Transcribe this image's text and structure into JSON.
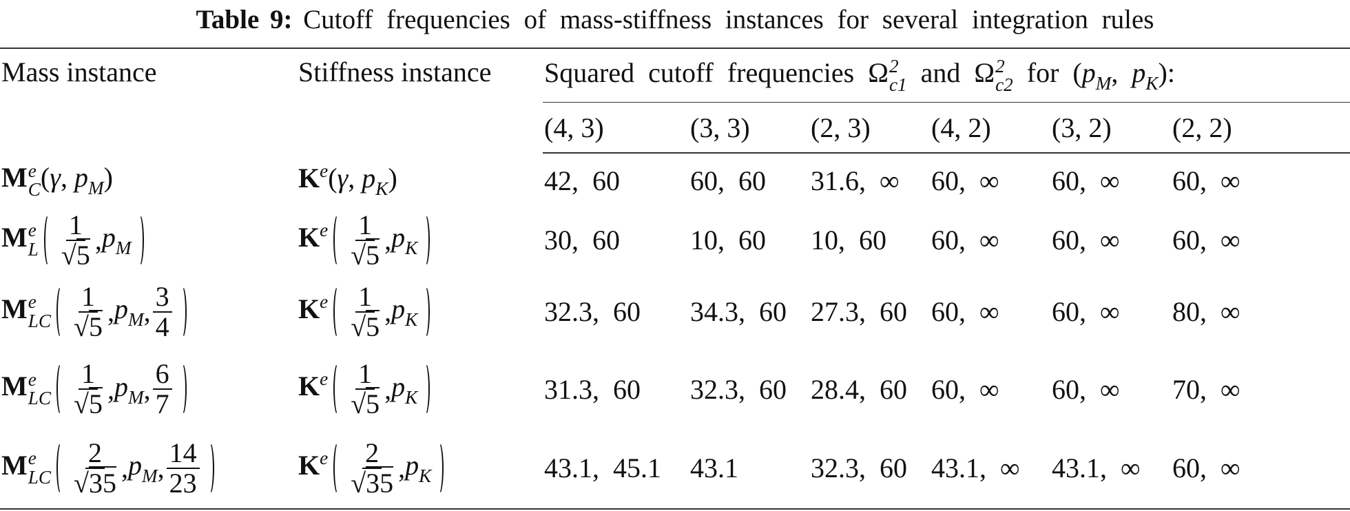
{
  "caption": {
    "label": "Table 9:",
    "text": "Cutoff frequencies of mass-stiffness instances for several integration rules"
  },
  "header": {
    "mass": "Mass instance",
    "stiffness": "Stiffness instance",
    "frequencies": [
      "Squared cutoff frequencies ",
      {
        "t": "Ω",
        "sup": "2",
        "sub": "c1"
      },
      " and ",
      {
        "t": "Ω",
        "sup": "2",
        "sub": "c2"
      },
      " for (",
      {
        "t": "p",
        "italic": true,
        "sub": "M"
      },
      ", ",
      {
        "t": "p",
        "italic": true,
        "sub": "K"
      },
      "):"
    ],
    "rules": [
      "(4, 3)",
      "(3, 3)",
      "(2, 3)",
      "(4, 2)",
      "(3, 2)",
      "(2, 2)"
    ]
  },
  "rows": [
    {
      "mass": [
        {
          "t": "M",
          "bold": true,
          "sup": "e",
          "sub": "C"
        },
        "(",
        {
          "t": "γ",
          "italic": true
        },
        ", ",
        {
          "t": "p",
          "italic": true,
          "sub": "M"
        },
        ")"
      ],
      "stiffness": [
        {
          "t": "K",
          "bold": true,
          "sup": "e"
        },
        "(",
        {
          "t": "γ",
          "italic": true
        },
        ", ",
        {
          "t": "p",
          "italic": true,
          "sub": "K"
        },
        ")"
      ],
      "frequencies": [
        "42, 60",
        "60, 60",
        "31.6, ∞",
        "60, ∞",
        "60, ∞",
        "60, ∞"
      ]
    },
    {
      "mass": [
        {
          "t": "M",
          "bold": true,
          "sup": "e",
          "sub": "L"
        },
        {
          "paren": [
            {
              "num": "1",
              "den": {
                "root": "√",
                "rad": "5"
              }
            },
            ",",
            {
              "t": "p",
              "italic": true,
              "sub": "M"
            }
          ]
        }
      ],
      "stiffness": [
        {
          "t": "K",
          "bold": true,
          "sup": "e"
        },
        {
          "paren": [
            {
              "num": "1",
              "den": {
                "root": "√",
                "rad": "5"
              }
            },
            ",",
            {
              "t": "p",
              "italic": true,
              "sub": "K"
            }
          ]
        }
      ],
      "frequencies": [
        "30, 60",
        "10, 60",
        "10, 60",
        "60, ∞",
        "60, ∞",
        "60, ∞"
      ]
    },
    {
      "mass": [
        {
          "t": "M",
          "bold": true,
          "sup": "e",
          "sub": "LC"
        },
        {
          "paren": [
            {
              "num": "1",
              "den": {
                "root": "√",
                "rad": "5"
              }
            },
            ",",
            {
              "t": "p",
              "italic": true,
              "sub": "M"
            },
            ",",
            {
              "num": "3",
              "den": "4"
            }
          ]
        }
      ],
      "stiffness": [
        {
          "t": "K",
          "bold": true,
          "sup": "e"
        },
        {
          "paren": [
            {
              "num": "1",
              "den": {
                "root": "√",
                "rad": "5"
              }
            },
            ",",
            {
              "t": "p",
              "italic": true,
              "sub": "K"
            }
          ]
        }
      ],
      "frequencies": [
        "32.3, 60",
        "34.3, 60",
        "27.3, 60",
        "60, ∞",
        "60, ∞",
        "80, ∞"
      ]
    },
    {
      "mass": [
        {
          "t": "M",
          "bold": true,
          "sup": "e",
          "sub": "LC"
        },
        {
          "paren": [
            {
              "num": "1",
              "den": {
                "root": "√",
                "rad": "5"
              }
            },
            ",",
            {
              "t": "p",
              "italic": true,
              "sub": "M"
            },
            ",",
            {
              "num": "6",
              "den": "7"
            }
          ]
        }
      ],
      "stiffness": [
        {
          "t": "K",
          "bold": true,
          "sup": "e"
        },
        {
          "paren": [
            {
              "num": "1",
              "den": {
                "root": "√",
                "rad": "5"
              }
            },
            ",",
            {
              "t": "p",
              "italic": true,
              "sub": "K"
            }
          ]
        }
      ],
      "frequencies": [
        "31.3, 60",
        "32.3, 60",
        "28.4, 60",
        "60, ∞",
        "60, ∞",
        "70, ∞"
      ]
    },
    {
      "mass": [
        {
          "t": "M",
          "bold": true,
          "sup": "e",
          "sub": "LC"
        },
        {
          "paren": [
            {
              "num": "2",
              "den": {
                "root": "√",
                "rad": "35"
              }
            },
            ",",
            {
              "t": "p",
              "italic": true,
              "sub": "M"
            },
            ",",
            {
              "num": "14",
              "den": "23"
            }
          ]
        }
      ],
      "stiffness": [
        {
          "t": "K",
          "bold": true,
          "sup": "e"
        },
        {
          "paren": [
            {
              "num": "2",
              "den": {
                "root": "√",
                "rad": "35"
              }
            },
            ",",
            {
              "t": "p",
              "italic": true,
              "sub": "K"
            }
          ]
        }
      ],
      "frequencies": [
        "43.1, 45.1",
        "43.1",
        "32.3, 60",
        "43.1, ∞",
        "43.1, ∞",
        "60, ∞"
      ]
    }
  ]
}
